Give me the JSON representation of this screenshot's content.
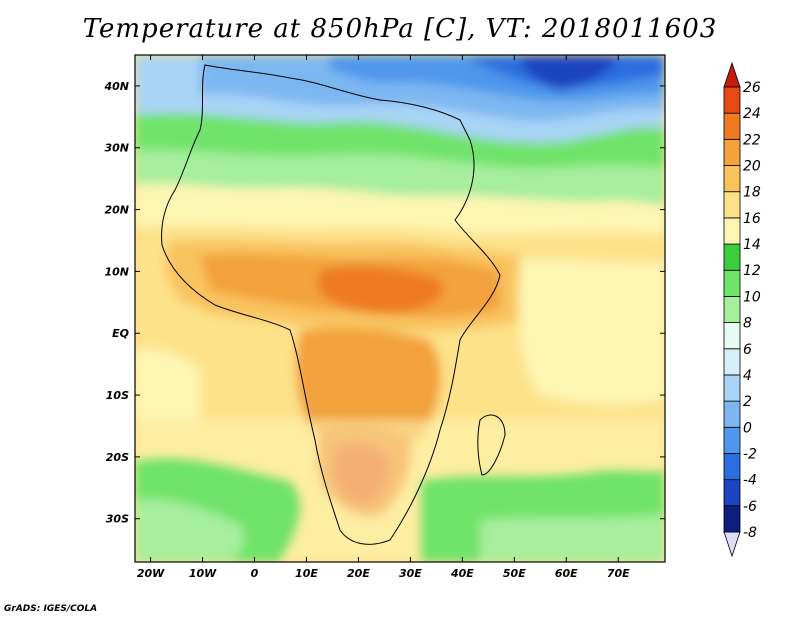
{
  "title": "Temperature at 850hPa [C], VT: 2018011603",
  "credit": "GrADS: IGES/COLA",
  "map": {
    "lon_range": [
      -23,
      79
    ],
    "lat_range": [
      -37,
      45
    ],
    "lon_ticks": [
      {
        "value": -20,
        "label": "20W"
      },
      {
        "value": -10,
        "label": "10W"
      },
      {
        "value": 0,
        "label": "0"
      },
      {
        "value": 10,
        "label": "10E"
      },
      {
        "value": 20,
        "label": "20E"
      },
      {
        "value": 30,
        "label": "30E"
      },
      {
        "value": 40,
        "label": "40E"
      },
      {
        "value": 50,
        "label": "50E"
      },
      {
        "value": 60,
        "label": "60E"
      },
      {
        "value": 70,
        "label": "70E"
      }
    ],
    "lat_ticks": [
      {
        "value": 40,
        "label": "40N"
      },
      {
        "value": 30,
        "label": "30N"
      },
      {
        "value": 20,
        "label": "20N"
      },
      {
        "value": 10,
        "label": "10N"
      },
      {
        "value": 0,
        "label": "EQ"
      },
      {
        "value": -10,
        "label": "10S"
      },
      {
        "value": -20,
        "label": "20S"
      },
      {
        "value": -30,
        "label": "30S"
      }
    ]
  },
  "colorbar": {
    "levels": [
      "-8",
      "-6",
      "-4",
      "-2",
      "0",
      "2",
      "4",
      "6",
      "8",
      "10",
      "12",
      "14",
      "16",
      "18",
      "20",
      "22",
      "24",
      "26"
    ],
    "colors": [
      "#e1dcf8",
      "#0f1f80",
      "#1c44c0",
      "#2b6ee0",
      "#4e97ec",
      "#7db7f2",
      "#a9d4f6",
      "#d6eefa",
      "#e8fbf3",
      "#a6ef9c",
      "#6fe36a",
      "#3ccd3c",
      "#fdf5b2",
      "#fde28a",
      "#f9c45e",
      "#f3a23c",
      "#ee7a21",
      "#e64a14",
      "#c61a0c"
    ]
  }
}
